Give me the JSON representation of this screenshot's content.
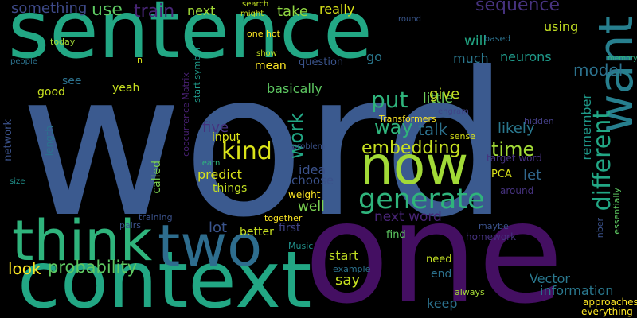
{
  "background": "#000000",
  "words": [
    {
      "text": "word",
      "color": "#3b5a8f"
    },
    {
      "text": "sentence",
      "color": "#22a784"
    },
    {
      "text": "one",
      "color": "#440f62"
    },
    {
      "text": "context",
      "color": "#22a784"
    },
    {
      "text": "two",
      "color": "#2e6d8e"
    },
    {
      "text": "think",
      "color": "#2fb47c"
    },
    {
      "text": "now",
      "color": "#a2da37"
    },
    {
      "text": "want",
      "color": "#277f8e"
    },
    {
      "text": "generate",
      "color": "#2fb47c"
    },
    {
      "text": "different",
      "color": "#22a785"
    },
    {
      "text": "kind",
      "color": "#dae319"
    },
    {
      "text": "embedding",
      "color": "#c7e020"
    },
    {
      "text": "time",
      "color": "#a2da37"
    },
    {
      "text": "way",
      "color": "#2fb47c"
    },
    {
      "text": "probability",
      "color": "#5ec962"
    },
    {
      "text": "put",
      "color": "#2fb47c"
    },
    {
      "text": "model",
      "color": "#2c728e"
    },
    {
      "text": "use",
      "color": "#5ec962"
    },
    {
      "text": "train",
      "color": "#482576"
    },
    {
      "text": "something",
      "color": "#3e4a89"
    },
    {
      "text": "next",
      "color": "#a2da37"
    },
    {
      "text": "take",
      "color": "#90d743"
    },
    {
      "text": "really",
      "color": "#dae319"
    },
    {
      "text": "little",
      "color": "#6ccd5a"
    },
    {
      "text": "sequence",
      "color": "#46327e"
    },
    {
      "text": "will",
      "color": "#22a785"
    },
    {
      "text": "using",
      "color": "#c2df23"
    },
    {
      "text": "much",
      "color": "#2a788e"
    },
    {
      "text": "neurons",
      "color": "#1f9a8a"
    },
    {
      "text": "go",
      "color": "#2a788e"
    },
    {
      "text": "question",
      "color": "#3a548c"
    },
    {
      "text": "mean",
      "color": "#fde725"
    },
    {
      "text": "basically",
      "color": "#5ec962"
    },
    {
      "text": "give",
      "color": "#c2df23"
    },
    {
      "text": "work",
      "color": "#22a785"
    },
    {
      "text": "talk",
      "color": "#2c728e"
    },
    {
      "text": "likely",
      "color": "#2a788e"
    },
    {
      "text": "remember",
      "color": "#1f9a8a"
    },
    {
      "text": "let",
      "color": "#31688e"
    },
    {
      "text": "idea",
      "color": "#3b528b"
    },
    {
      "text": "choose",
      "color": "#3b528b"
    },
    {
      "text": "well",
      "color": "#7ad151"
    },
    {
      "text": "next word",
      "color": "#482475"
    },
    {
      "text": "lot",
      "color": "#3a548c"
    },
    {
      "text": "better",
      "color": "#c7e020"
    },
    {
      "text": "first",
      "color": "#414487"
    },
    {
      "text": "look",
      "color": "#fde725"
    },
    {
      "text": "predict",
      "color": "#dae319"
    },
    {
      "text": "input",
      "color": "#dae319"
    },
    {
      "text": "five",
      "color": "#46327e"
    },
    {
      "text": "things",
      "color": "#c2df23"
    },
    {
      "text": "called",
      "color": "#7ad151"
    },
    {
      "text": "start",
      "color": "#c2df23"
    },
    {
      "text": "say",
      "color": "#c7e020"
    },
    {
      "text": "end",
      "color": "#2c728e"
    },
    {
      "text": "need",
      "color": "#c2df23"
    },
    {
      "text": "keep",
      "color": "#2c728e"
    },
    {
      "text": "Vector",
      "color": "#2a788e"
    },
    {
      "text": "information",
      "color": "#2a788e"
    },
    {
      "text": "approaches",
      "color": "#fde725"
    },
    {
      "text": "everything",
      "color": "#fde725"
    },
    {
      "text": "essentially",
      "color": "#5ec962"
    },
    {
      "text": "nber",
      "color": "#3b528b"
    },
    {
      "text": "maybe",
      "color": "#3b528b"
    },
    {
      "text": "around",
      "color": "#46327e"
    },
    {
      "text": "PCA",
      "color": "#dae319"
    },
    {
      "text": "target word",
      "color": "#46327e"
    },
    {
      "text": "sense",
      "color": "#dae319"
    },
    {
      "text": "hidden",
      "color": "#433e85"
    },
    {
      "text": "engram",
      "color": "#404588"
    },
    {
      "text": "Transformers",
      "color": "#fde725"
    },
    {
      "text": "homework",
      "color": "#46327e"
    },
    {
      "text": "find",
      "color": "#5ec962"
    },
    {
      "text": "always",
      "color": "#a5db36"
    },
    {
      "text": "example",
      "color": "#2c728e"
    },
    {
      "text": "Music",
      "color": "#21918c"
    },
    {
      "text": "problem",
      "color": "#3b528b"
    },
    {
      "text": "learn",
      "color": "#2fb47c"
    },
    {
      "text": "together",
      "color": "#fde725"
    },
    {
      "text": "weight",
      "color": "#fde725"
    },
    {
      "text": "coocurrence Matrix",
      "color": "#482173"
    },
    {
      "text": "start symbol",
      "color": "#1f9a8a"
    },
    {
      "text": "based",
      "color": "#2c728e"
    },
    {
      "text": "round",
      "color": "#39568c"
    },
    {
      "text": "one hot",
      "color": "#fde725"
    },
    {
      "text": "show",
      "color": "#c2df23"
    },
    {
      "text": "might",
      "color": "#c7e020"
    },
    {
      "text": "search",
      "color": "#c2df23"
    },
    {
      "text": "memory",
      "color": "#2fb47c"
    },
    {
      "text": "n",
      "color": "#dae319"
    },
    {
      "text": "yeah",
      "color": "#c7e020"
    },
    {
      "text": "good",
      "color": "#c7e020"
    },
    {
      "text": "see",
      "color": "#2c728e"
    },
    {
      "text": "today",
      "color": "#a2da37"
    },
    {
      "text": "people",
      "color": "#2c728e"
    },
    {
      "text": "network",
      "color": "#3b528b"
    },
    {
      "text": "length",
      "color": "#2c728e"
    },
    {
      "text": "size",
      "color": "#21918c"
    },
    {
      "text": "pairs",
      "color": "#3b528b"
    },
    {
      "text": "training",
      "color": "#3b528b"
    }
  ]
}
